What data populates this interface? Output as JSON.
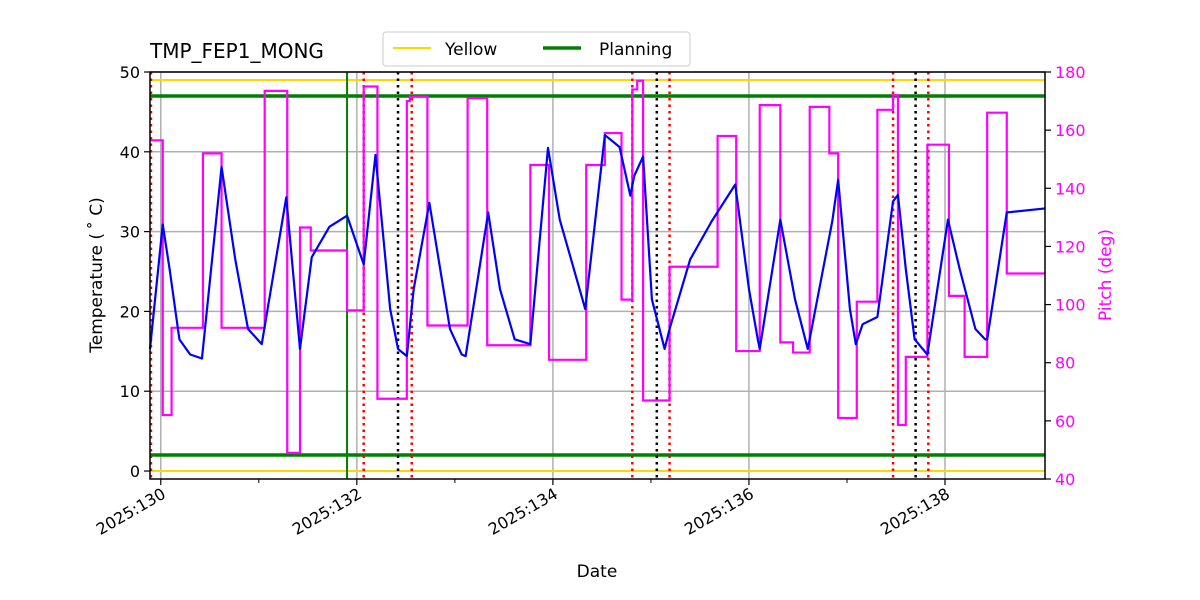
{
  "chart_data": {
    "type": "line",
    "title": "TMP_FEP1_MONG",
    "xlabel": "Date",
    "ylabel": "Temperature ($^\\circ$C)",
    "ylabel_display": "Temperature ( ˚ C)",
    "y2label": "Pitch (deg)",
    "xlim": [
      129.89,
      139.02
    ],
    "ylim": [
      -1,
      50
    ],
    "y2lim": [
      40,
      180
    ],
    "x_ticks": [
      130,
      132,
      134,
      136,
      138
    ],
    "x_tick_labels": [
      "2025:130",
      "2025:132",
      "2025:134",
      "2025:136",
      "2025:138"
    ],
    "x_minor_ticks": [
      131,
      133,
      135,
      137
    ],
    "y_ticks": [
      0,
      10,
      20,
      30,
      40,
      50
    ],
    "y2_ticks": [
      40,
      60,
      80,
      100,
      120,
      140,
      160,
      180
    ],
    "grid": true,
    "legend": {
      "placement": "top-center",
      "entries": [
        {
          "name": "Yellow",
          "color": "#ffd700"
        },
        {
          "name": "Planning",
          "color": "#008000"
        }
      ]
    },
    "limits": {
      "yellow": [
        49,
        0
      ],
      "planning": [
        47,
        2
      ]
    },
    "colors": {
      "temperature": "#0000ff",
      "pitch": "#ff00ff",
      "yellow": "#ffd700",
      "planning": "#008000",
      "grid": "#b0b0b0",
      "y2axis": "#ff00ff"
    },
    "temperature": [
      [
        129.89,
        15.3
      ],
      [
        130.02,
        30.9
      ],
      [
        130.09,
        25.3
      ],
      [
        130.19,
        16.5
      ],
      [
        130.3,
        14.6
      ],
      [
        130.42,
        14.1
      ],
      [
        130.62,
        38.1
      ],
      [
        130.76,
        26.5
      ],
      [
        130.89,
        17.8
      ],
      [
        131.03,
        15.9
      ],
      [
        131.28,
        34.3
      ],
      [
        131.42,
        15.3
      ],
      [
        131.54,
        26.8
      ],
      [
        131.72,
        30.6
      ],
      [
        131.9,
        32.0
      ],
      [
        132.07,
        25.9
      ],
      [
        132.19,
        39.6
      ],
      [
        132.34,
        20.3
      ],
      [
        132.42,
        15.3
      ],
      [
        132.51,
        14.4
      ],
      [
        132.58,
        22.8
      ],
      [
        132.74,
        33.6
      ],
      [
        132.95,
        17.8
      ],
      [
        133.07,
        14.6
      ],
      [
        133.11,
        14.4
      ],
      [
        133.34,
        32.4
      ],
      [
        133.46,
        22.8
      ],
      [
        133.61,
        16.5
      ],
      [
        133.77,
        15.9
      ],
      [
        133.95,
        40.5
      ],
      [
        134.07,
        31.5
      ],
      [
        134.33,
        20.3
      ],
      [
        134.53,
        42.1
      ],
      [
        134.68,
        40.6
      ],
      [
        134.79,
        34.5
      ],
      [
        134.83,
        37.0
      ],
      [
        134.92,
        39.4
      ],
      [
        135.01,
        21.5
      ],
      [
        135.14,
        15.3
      ],
      [
        135.19,
        17.8
      ],
      [
        135.4,
        26.5
      ],
      [
        135.62,
        31.3
      ],
      [
        135.86,
        35.9
      ],
      [
        136.0,
        22.8
      ],
      [
        136.09,
        16.5
      ],
      [
        136.11,
        15.3
      ],
      [
        136.32,
        31.5
      ],
      [
        136.47,
        21.5
      ],
      [
        136.6,
        15.3
      ],
      [
        136.85,
        31.3
      ],
      [
        136.91,
        36.5
      ],
      [
        137.03,
        20.3
      ],
      [
        137.09,
        15.9
      ],
      [
        137.16,
        18.4
      ],
      [
        137.31,
        19.3
      ],
      [
        137.47,
        33.8
      ],
      [
        137.52,
        34.6
      ],
      [
        137.6,
        25.3
      ],
      [
        137.69,
        16.5
      ],
      [
        137.82,
        14.6
      ],
      [
        138.03,
        31.5
      ],
      [
        138.15,
        25.3
      ],
      [
        138.31,
        17.8
      ],
      [
        138.41,
        16.5
      ],
      [
        138.43,
        16.5
      ],
      [
        138.63,
        32.4
      ],
      [
        139.02,
        32.9
      ]
    ],
    "pitch_steps": [
      [
        129.89,
        156.5
      ],
      [
        130.02,
        62
      ],
      [
        130.11,
        92
      ],
      [
        130.43,
        152
      ],
      [
        130.62,
        92
      ],
      [
        131.06,
        173.5
      ],
      [
        131.29,
        49
      ],
      [
        131.42,
        126.5
      ],
      [
        131.53,
        118.6
      ],
      [
        131.9,
        98
      ],
      [
        132.07,
        175
      ],
      [
        132.21,
        67.6
      ],
      [
        132.51,
        170
      ],
      [
        132.54,
        171.5
      ],
      [
        132.72,
        92.8
      ],
      [
        133.13,
        171
      ],
      [
        133.33,
        86
      ],
      [
        133.77,
        148
      ],
      [
        133.96,
        81
      ],
      [
        134.34,
        148
      ],
      [
        134.53,
        159
      ],
      [
        134.7,
        101.7
      ],
      [
        134.81,
        174
      ],
      [
        134.86,
        177
      ],
      [
        134.92,
        67
      ],
      [
        135.19,
        113
      ],
      [
        135.68,
        158
      ],
      [
        135.87,
        84
      ],
      [
        136.11,
        168.6
      ],
      [
        136.32,
        87
      ],
      [
        136.45,
        83.5
      ],
      [
        136.62,
        168
      ],
      [
        136.82,
        152
      ],
      [
        136.91,
        61
      ],
      [
        137.1,
        101
      ],
      [
        137.31,
        167
      ],
      [
        137.47,
        172
      ],
      [
        137.52,
        58.6
      ],
      [
        137.6,
        82
      ],
      [
        137.82,
        155
      ],
      [
        138.04,
        103
      ],
      [
        138.2,
        82
      ],
      [
        138.43,
        166
      ],
      [
        138.63,
        110.7
      ],
      [
        139.02,
        110.7
      ]
    ],
    "vlines_green": [
      131.9
    ],
    "vlines_red_dotted": [
      129.9,
      132.07,
      132.56,
      134.81,
      135.19,
      137.47,
      137.83
    ],
    "vlines_black_dotted": [
      132.42,
      135.06,
      137.7
    ]
  }
}
